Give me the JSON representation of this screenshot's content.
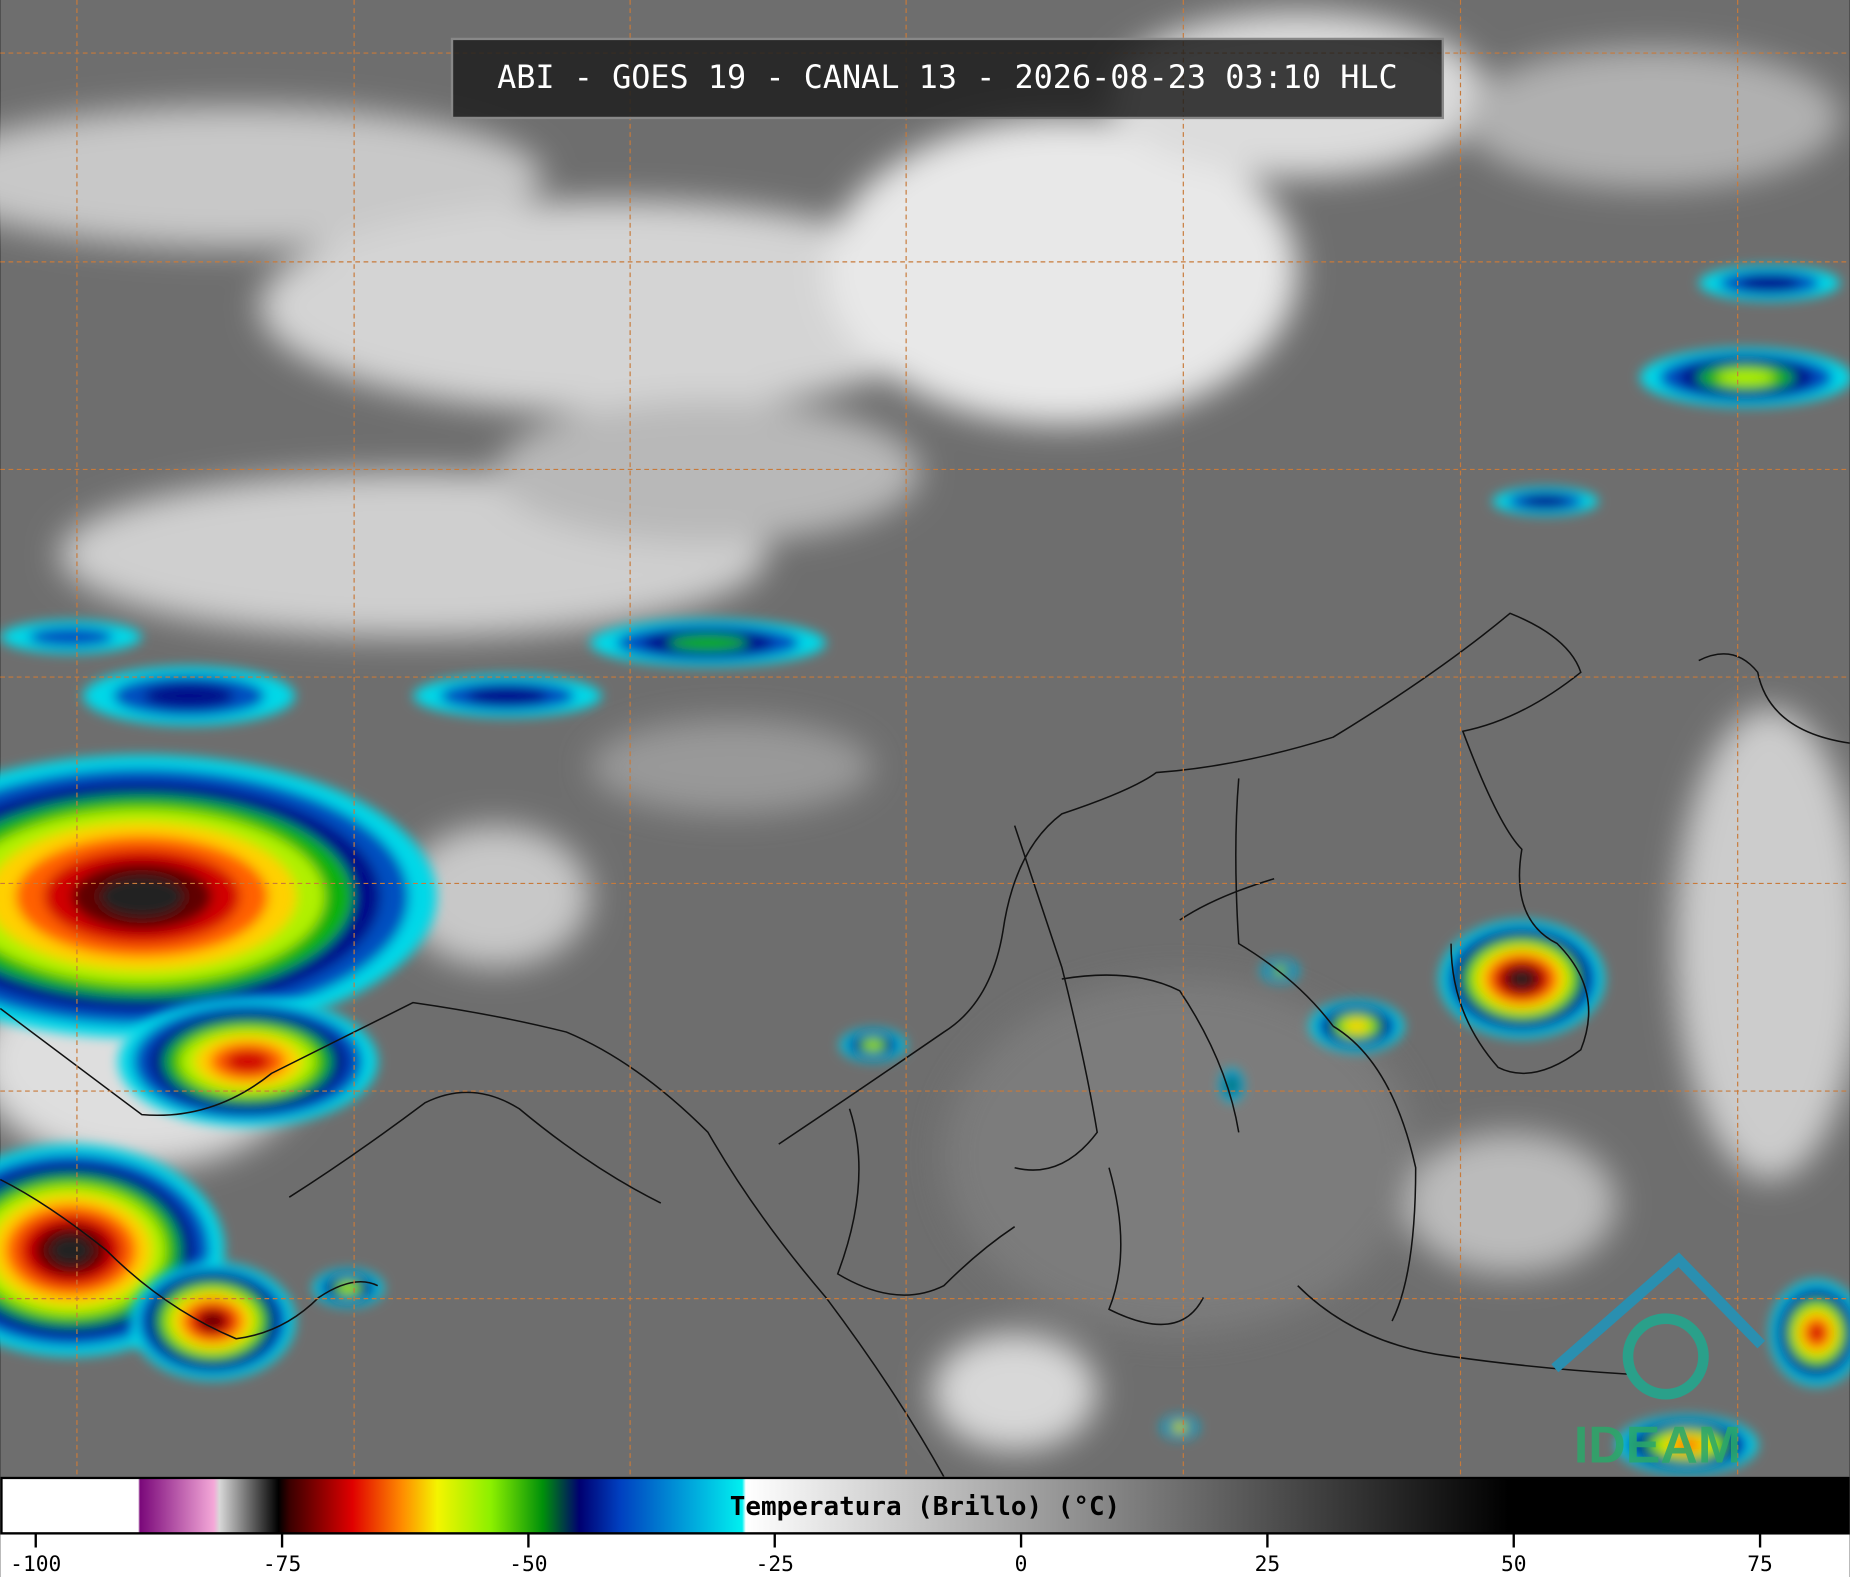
{
  "header": {
    "title": "ABI - GOES 19 - CANAL 13 - 2026-08-23 03:10 HLC"
  },
  "logo": {
    "text": "IDEAM"
  },
  "chart_data": {
    "type": "colorbar",
    "title": "Temperatura (Brillo) (°C)",
    "xlim": [
      -103.6,
      84.1
    ],
    "xticks": [
      -100,
      -75,
      -50,
      -25,
      0,
      25,
      50,
      75
    ]
  }
}
